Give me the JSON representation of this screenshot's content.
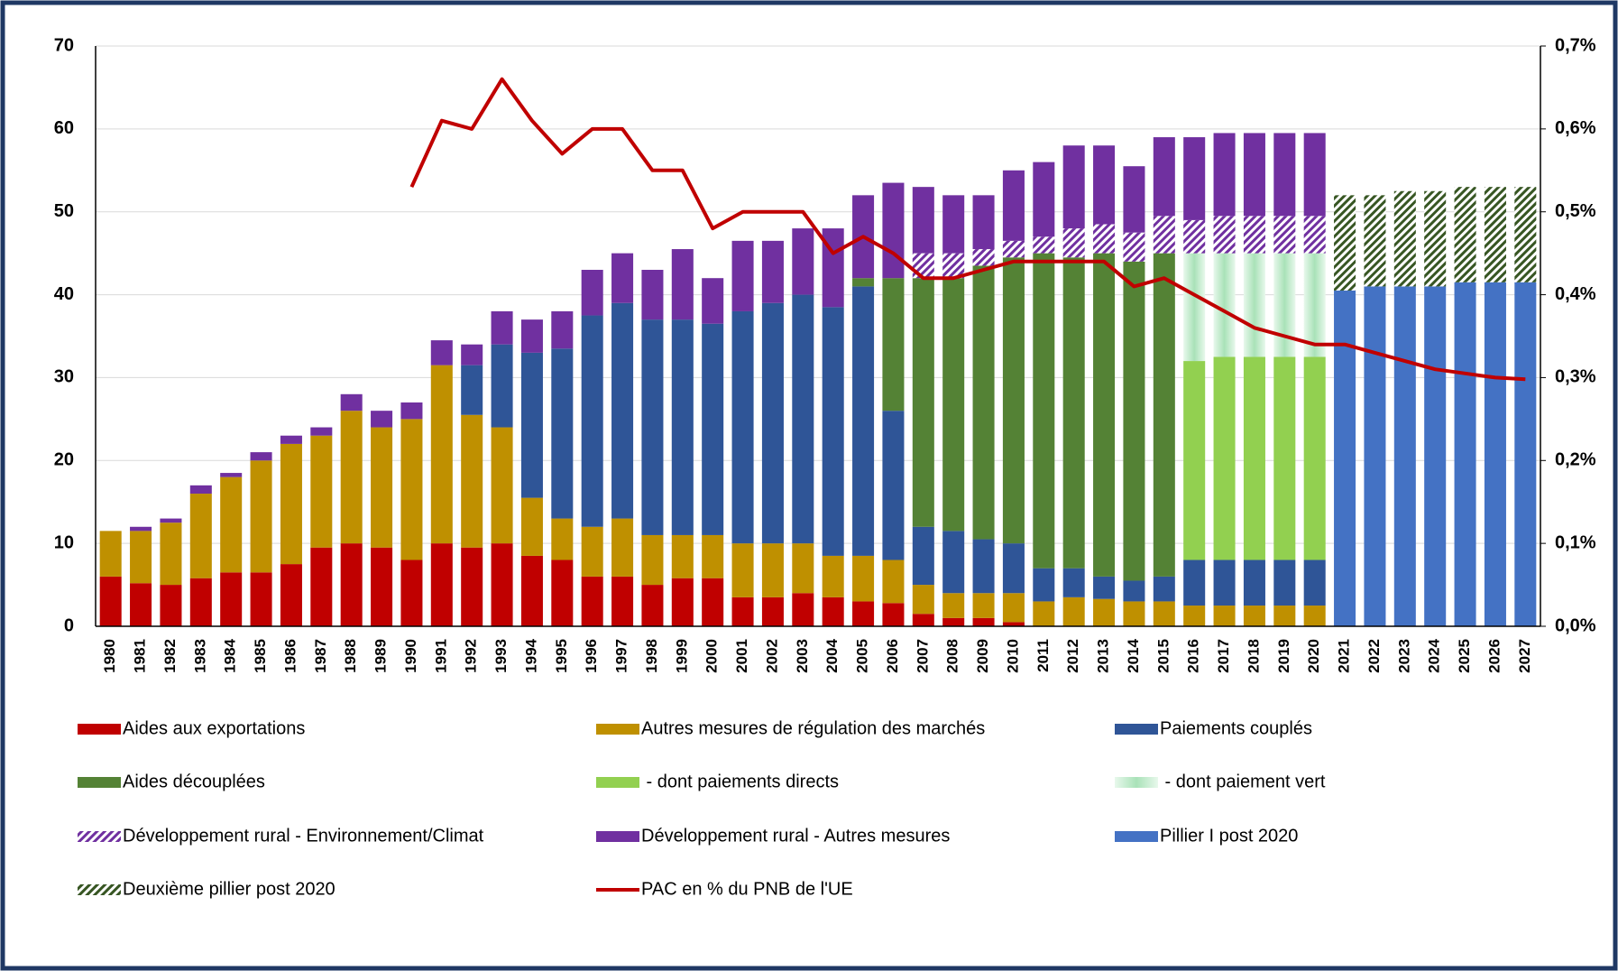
{
  "chart_data": {
    "type": "bar",
    "stacked": true,
    "categories": [
      "1980",
      "1981",
      "1982",
      "1983",
      "1984",
      "1985",
      "1986",
      "1987",
      "1988",
      "1989",
      "1990",
      "1991",
      "1992",
      "1993",
      "1994",
      "1995",
      "1996",
      "1997",
      "1998",
      "1999",
      "2000",
      "2001",
      "2002",
      "2003",
      "2004",
      "2005",
      "2006",
      "2007",
      "2008",
      "2009",
      "2010",
      "2011",
      "2012",
      "2013",
      "2014",
      "2015",
      "2016",
      "2017",
      "2018",
      "2019",
      "2020",
      "2021",
      "2022",
      "2023",
      "2024",
      "2025",
      "2026",
      "2027"
    ],
    "ylim": [
      0,
      70
    ],
    "yticks": [
      0,
      10,
      20,
      30,
      40,
      50,
      60,
      70
    ],
    "y2lim": [
      0,
      0.7
    ],
    "y2ticks": [
      {
        "value": 0,
        "label": "0,0%"
      },
      {
        "value": 0.1,
        "label": "0,1%"
      },
      {
        "value": 0.2,
        "label": "0,2%"
      },
      {
        "value": 0.3,
        "label": "0,3%"
      },
      {
        "value": 0.4,
        "label": "0,4%"
      },
      {
        "value": 0.5,
        "label": "0,5%"
      },
      {
        "value": 0.6,
        "label": "0,6%"
      },
      {
        "value": 0.7,
        "label": "0,7%"
      }
    ],
    "grid": true,
    "legend": "bottom",
    "series": [
      {
        "name": "Aides aux exportations",
        "color": "#c00000",
        "values": [
          6,
          5.2,
          5,
          5.8,
          6.5,
          6.5,
          7.5,
          9.5,
          10,
          9.5,
          8,
          10,
          9.5,
          10,
          8.5,
          8,
          6,
          6,
          5,
          5.8,
          5.8,
          3.5,
          3.5,
          4,
          3.5,
          3,
          2.8,
          1.5,
          1,
          1,
          0.5,
          null,
          null,
          null,
          null,
          null,
          null,
          null,
          null,
          null,
          null,
          null,
          null,
          null,
          null,
          null,
          null,
          null
        ]
      },
      {
        "name": "Autres mesures de régulation des marchés",
        "color": "#bf9000",
        "values": [
          5.5,
          6.3,
          7.5,
          10.2,
          11.5,
          13.5,
          14.5,
          13.5,
          16,
          14.5,
          17,
          21.5,
          16,
          14,
          7,
          5,
          6,
          7,
          6,
          5.2,
          5.2,
          6.5,
          6.5,
          6,
          5,
          5.5,
          5.2,
          3.5,
          3,
          3,
          3.5,
          3,
          3.5,
          3.3,
          3,
          3,
          2.5,
          2.5,
          2.5,
          2.5,
          2.5,
          null,
          null,
          null,
          null,
          null,
          null,
          null
        ]
      },
      {
        "name": "Paiements couplés",
        "color": "#2f5597",
        "values": [
          null,
          null,
          null,
          null,
          null,
          null,
          null,
          null,
          null,
          null,
          null,
          null,
          6,
          10,
          17.5,
          20.5,
          25.5,
          26,
          26,
          26,
          25.5,
          28,
          29,
          30,
          30,
          32.5,
          18,
          7,
          7.5,
          6.5,
          6,
          4,
          3.5,
          2.7,
          2.5,
          3,
          5.5,
          5.5,
          5.5,
          5.5,
          5.5,
          null,
          null,
          null,
          null,
          null,
          null,
          null
        ]
      },
      {
        "name": "Aides découplées",
        "color": "#548235",
        "values": [
          null,
          null,
          null,
          null,
          null,
          null,
          null,
          null,
          null,
          null,
          null,
          null,
          null,
          null,
          null,
          null,
          null,
          null,
          null,
          null,
          null,
          null,
          null,
          null,
          null,
          1,
          16,
          30,
          30.5,
          33,
          34.5,
          38,
          37.5,
          39,
          38.5,
          39,
          null,
          null,
          null,
          null,
          null,
          null,
          null,
          null,
          null,
          null,
          null,
          null
        ]
      },
      {
        "name": " - dont paiements directs",
        "color": "#92d050",
        "values": [
          null,
          null,
          null,
          null,
          null,
          null,
          null,
          null,
          null,
          null,
          null,
          null,
          null,
          null,
          null,
          null,
          null,
          null,
          null,
          null,
          null,
          null,
          null,
          null,
          null,
          null,
          null,
          null,
          null,
          null,
          null,
          null,
          null,
          null,
          null,
          null,
          24,
          24.5,
          24.5,
          24.5,
          24.5,
          null,
          null,
          null,
          null,
          null,
          null,
          null
        ]
      },
      {
        "name": " - dont paiement vert",
        "color": "#a9e2b8",
        "pattern": "gradient",
        "values": [
          null,
          null,
          null,
          null,
          null,
          null,
          null,
          null,
          null,
          null,
          null,
          null,
          null,
          null,
          null,
          null,
          null,
          null,
          null,
          null,
          null,
          null,
          null,
          null,
          null,
          null,
          null,
          null,
          null,
          null,
          null,
          null,
          null,
          null,
          null,
          null,
          13,
          12.5,
          12.5,
          12.5,
          12.5,
          null,
          null,
          null,
          null,
          null,
          null,
          null
        ]
      },
      {
        "name": "Développement rural - Environnement/Climat",
        "color": "#7030a0",
        "pattern": "hatch",
        "values": [
          null,
          null,
          null,
          null,
          null,
          null,
          null,
          null,
          null,
          null,
          null,
          null,
          null,
          null,
          null,
          null,
          null,
          null,
          null,
          null,
          null,
          null,
          null,
          null,
          null,
          null,
          null,
          3,
          3,
          2,
          2,
          2,
          3.5,
          3.5,
          3.5,
          4.5,
          4,
          4.5,
          4.5,
          4.5,
          4.5,
          null,
          null,
          null,
          null,
          null,
          null,
          null
        ]
      },
      {
        "name": "Développement rural - Autres mesures",
        "color": "#7030a0",
        "values": [
          null,
          0.5,
          0.5,
          1,
          0.5,
          1,
          1,
          1,
          2,
          2,
          2,
          3,
          2.5,
          4,
          4,
          4.5,
          5.5,
          6,
          6,
          8.5,
          5.5,
          8.5,
          7.5,
          8,
          9.5,
          10,
          11.5,
          8,
          7,
          6.5,
          8.5,
          9,
          10,
          9.5,
          8,
          9.5,
          10,
          10,
          10,
          10,
          10,
          null,
          null,
          null,
          null,
          null,
          null,
          null
        ]
      },
      {
        "name": "Pillier I post 2020",
        "color": "#4472c4",
        "values": [
          null,
          null,
          null,
          null,
          null,
          null,
          null,
          null,
          null,
          null,
          null,
          null,
          null,
          null,
          null,
          null,
          null,
          null,
          null,
          null,
          null,
          null,
          null,
          null,
          null,
          null,
          null,
          null,
          null,
          null,
          null,
          null,
          null,
          null,
          null,
          null,
          null,
          null,
          null,
          null,
          null,
          40.5,
          41,
          41,
          41,
          41.5,
          41.5,
          41.5
        ]
      },
      {
        "name": "Deuxième pillier post 2020",
        "color": "#375623",
        "pattern": "hatch",
        "values": [
          null,
          null,
          null,
          null,
          null,
          null,
          null,
          null,
          null,
          null,
          null,
          null,
          null,
          null,
          null,
          null,
          null,
          null,
          null,
          null,
          null,
          null,
          null,
          null,
          null,
          null,
          null,
          null,
          null,
          null,
          null,
          null,
          null,
          null,
          null,
          null,
          null,
          null,
          null,
          null,
          null,
          11.5,
          11,
          11.5,
          11.5,
          11.5,
          11.5,
          11.5
        ]
      },
      {
        "name": "PAC en % du PNB de l'UE",
        "color": "#c00000",
        "type": "line",
        "axis": "y2",
        "values": [
          null,
          null,
          null,
          null,
          null,
          null,
          null,
          null,
          null,
          null,
          0.53,
          0.61,
          0.6,
          0.66,
          0.61,
          0.57,
          0.6,
          0.6,
          0.55,
          0.55,
          0.48,
          0.5,
          0.5,
          0.5,
          0.45,
          0.47,
          0.45,
          0.42,
          0.42,
          0.43,
          0.44,
          0.44,
          0.44,
          0.44,
          0.41,
          0.42,
          0.4,
          0.38,
          0.36,
          0.35,
          0.34,
          0.34,
          0.33,
          0.32,
          0.31,
          0.305,
          0.3,
          0.298
        ]
      }
    ]
  }
}
